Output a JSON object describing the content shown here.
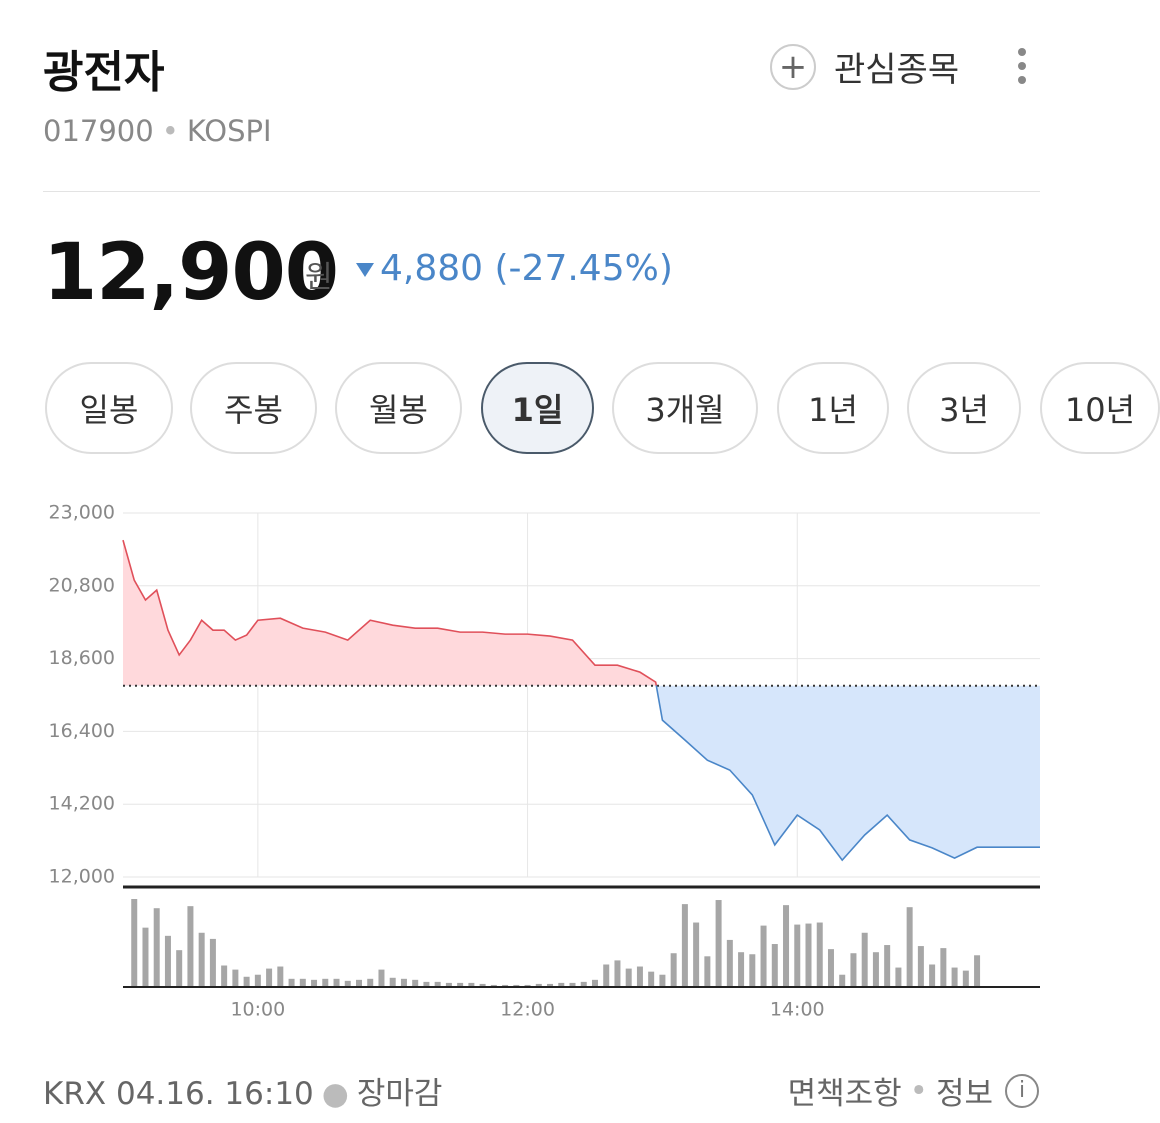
{
  "header": {
    "title": "광전자",
    "code": "017900",
    "market": "KOSPI",
    "watch_label": "관심종목"
  },
  "quote": {
    "price": "12,900",
    "unit": "원",
    "change": "4,880",
    "change_rate": "(-27.45%)"
  },
  "tabs": [
    {
      "label": "일봉",
      "active": false
    },
    {
      "label": "주봉",
      "active": false
    },
    {
      "label": "월봉",
      "active": false
    },
    {
      "label": "1일",
      "active": true
    },
    {
      "label": "3개월",
      "active": false
    },
    {
      "label": "1년",
      "active": false
    },
    {
      "label": "3년",
      "active": false
    },
    {
      "label": "10년",
      "active": false
    }
  ],
  "chart_data": {
    "type": "line",
    "x": [
      "09:00",
      "09:05",
      "09:10",
      "09:15",
      "09:20",
      "09:25",
      "09:30",
      "09:35",
      "09:40",
      "09:45",
      "09:50",
      "09:55",
      "10:00",
      "10:10",
      "10:20",
      "10:30",
      "10:40",
      "10:50",
      "11:00",
      "11:10",
      "11:20",
      "11:30",
      "11:40",
      "11:50",
      "12:00",
      "12:10",
      "12:20",
      "12:30",
      "12:40",
      "12:50",
      "12:57",
      "13:00",
      "13:10",
      "13:20",
      "13:30",
      "13:40",
      "13:50",
      "14:00",
      "14:10",
      "14:20",
      "14:30",
      "14:40",
      "14:50",
      "15:00",
      "15:10",
      "15:20",
      "15:30",
      "15:45"
    ],
    "values": [
      22180,
      20970,
      20370,
      20670,
      19460,
      18710,
      19160,
      19760,
      19460,
      19460,
      19160,
      19310,
      19760,
      19820,
      19520,
      19400,
      19160,
      19760,
      19610,
      19520,
      19520,
      19400,
      19400,
      19340,
      19340,
      19280,
      19160,
      18400,
      18400,
      18190,
      17890,
      16740,
      16140,
      15530,
      15230,
      14480,
      12970,
      13870,
      13420,
      12510,
      13270,
      13870,
      13120,
      12880,
      12570,
      12900,
      12900,
      12900
    ],
    "reference_line": 17780,
    "up_color": "#e0505a",
    "up_fill": "#ffd9dc",
    "down_color": "#4a86c8",
    "down_fill": "#d6e6fb",
    "xlim": [
      "09:00",
      "15:48"
    ],
    "xticks": [
      "10:00",
      "12:00",
      "14:00"
    ],
    "ylim": [
      12000,
      23000
    ],
    "yticks": [
      {
        "value": 12000,
        "label": "12,000"
      },
      {
        "value": 14200,
        "label": "14,200"
      },
      {
        "value": 16400,
        "label": "16,400"
      },
      {
        "value": 18600,
        "label": "18,600"
      },
      {
        "value": 20800,
        "label": "20,800"
      },
      {
        "value": 23000,
        "label": "23,000"
      }
    ],
    "grid": true,
    "volume": {
      "color": "#a6a6a6",
      "x": [
        "09:05",
        "09:10",
        "09:15",
        "09:20",
        "09:25",
        "09:30",
        "09:35",
        "09:40",
        "09:45",
        "09:50",
        "09:55",
        "10:00",
        "10:05",
        "10:10",
        "10:15",
        "10:20",
        "10:25",
        "10:30",
        "10:35",
        "10:40",
        "10:45",
        "10:50",
        "10:55",
        "11:00",
        "11:05",
        "11:10",
        "11:15",
        "11:20",
        "11:25",
        "11:30",
        "11:35",
        "11:40",
        "11:45",
        "11:50",
        "11:55",
        "12:00",
        "12:05",
        "12:10",
        "12:15",
        "12:20",
        "12:25",
        "12:30",
        "12:35",
        "12:40",
        "12:45",
        "12:50",
        "12:55",
        "13:00",
        "13:05",
        "13:10",
        "13:15",
        "13:20",
        "13:25",
        "13:30",
        "13:35",
        "13:40",
        "13:45",
        "13:50",
        "13:55",
        "14:00",
        "14:05",
        "14:10",
        "14:15",
        "14:20",
        "14:25",
        "14:30",
        "14:35",
        "14:40",
        "14:45",
        "14:50",
        "14:55",
        "15:00",
        "15:05",
        "15:10",
        "15:15",
        "15:20"
      ],
      "values": [
        86,
        58,
        77,
        50,
        36,
        79,
        53,
        47,
        21,
        17,
        10,
        12,
        18,
        20,
        8,
        8,
        7,
        8,
        8,
        6,
        7,
        8,
        17,
        9,
        8,
        7,
        5,
        5,
        4,
        4,
        4,
        3,
        2,
        2,
        2,
        2,
        3,
        3,
        4,
        4,
        5,
        7,
        22,
        26,
        18,
        20,
        15,
        12,
        33,
        81,
        63,
        30,
        85,
        46,
        34,
        32,
        60,
        42,
        80,
        61,
        62,
        63,
        37,
        12,
        33,
        53,
        34,
        41,
        19,
        78,
        40,
        22,
        38,
        19,
        16,
        31
      ]
    }
  },
  "footer": {
    "exchange": "KRX",
    "timestamp": "04.16. 16:10",
    "status": "장마감",
    "disclaimer": "면책조항",
    "info": "정보"
  }
}
